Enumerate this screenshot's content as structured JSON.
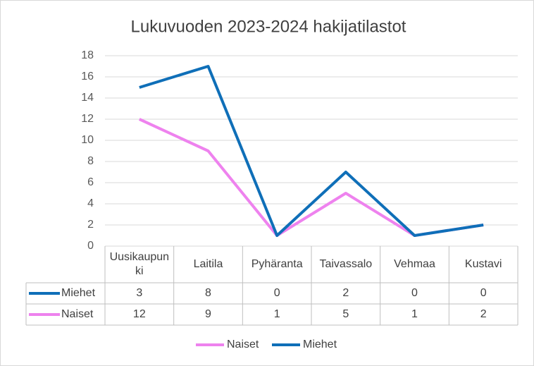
{
  "chart_data": {
    "type": "stacked-line",
    "title": "Lukuvuoden  2023-2024 hakijatilastot",
    "categories": [
      "Uusikaupunki",
      "Laitila",
      "Pyhäranta",
      "Taivassalo",
      "Vehmaa",
      "Kustavi"
    ],
    "series": [
      {
        "name": "Naiset",
        "color": "#ee82ee",
        "values": [
          12,
          9,
          1,
          5,
          1,
          2
        ]
      },
      {
        "name": "Miehet",
        "color": "#0f6fb8",
        "values": [
          3,
          8,
          0,
          2,
          0,
          0
        ]
      }
    ],
    "ylim": [
      0,
      18
    ],
    "yticks": [
      0,
      2,
      4,
      6,
      8,
      10,
      12,
      14,
      16,
      18
    ],
    "grid": true,
    "legend": "bottom",
    "data_table": true
  }
}
